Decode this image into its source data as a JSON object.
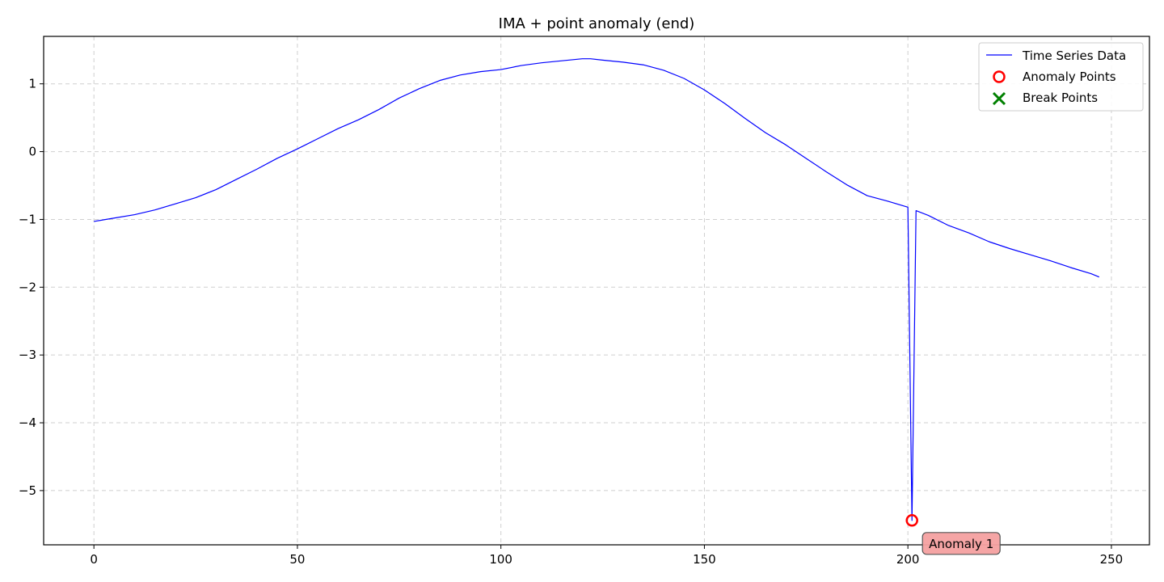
{
  "chart_data": {
    "type": "line",
    "title": "IMA + point anomaly (end)",
    "xlabel": "",
    "ylabel": "",
    "xlim": [
      -12.35,
      259.35
    ],
    "ylim": [
      -5.8,
      1.7
    ],
    "xticks": [
      0,
      50,
      100,
      150,
      200,
      250
    ],
    "xtick_labels": [
      "0",
      "50",
      "100",
      "150",
      "200",
      "250"
    ],
    "yticks": [
      1,
      0,
      -1,
      -2,
      -3,
      -4,
      -5
    ],
    "ytick_labels": [
      "1",
      "0",
      "−1",
      "−2",
      "−3",
      "−4",
      "−5"
    ],
    "grid": true,
    "legend_position": "top-right",
    "series": [
      {
        "name": "Time Series Data",
        "color": "#0000ff",
        "x": [
          0,
          5,
          10,
          15,
          20,
          25,
          30,
          35,
          40,
          45,
          50,
          55,
          60,
          65,
          70,
          75,
          80,
          85,
          90,
          95,
          100,
          105,
          110,
          115,
          120,
          122,
          125,
          130,
          135,
          140,
          145,
          150,
          155,
          160,
          165,
          170,
          175,
          180,
          185,
          190,
          195,
          200,
          201,
          202,
          205,
          210,
          215,
          220,
          225,
          230,
          235,
          240,
          245,
          247
        ],
        "y": [
          -1.03,
          -0.98,
          -0.93,
          -0.86,
          -0.77,
          -0.68,
          -0.56,
          -0.41,
          -0.26,
          -0.1,
          0.04,
          0.19,
          0.34,
          0.47,
          0.62,
          0.79,
          0.93,
          1.05,
          1.13,
          1.18,
          1.21,
          1.27,
          1.31,
          1.34,
          1.37,
          1.37,
          1.35,
          1.32,
          1.28,
          1.2,
          1.08,
          0.91,
          0.71,
          0.49,
          0.28,
          0.1,
          -0.1,
          -0.3,
          -0.49,
          -0.65,
          -0.73,
          -0.82,
          -5.44,
          -0.87,
          -0.94,
          -1.09,
          -1.2,
          -1.33,
          -1.43,
          -1.52,
          -1.61,
          -1.71,
          -1.8,
          -1.85
        ]
      }
    ],
    "anomaly_points": {
      "name": "Anomaly Points",
      "color": "#ff0000",
      "points": [
        {
          "x": 201,
          "y": -5.44
        }
      ]
    },
    "break_points": {
      "name": "Break Points",
      "color": "#008000",
      "points": []
    },
    "annotations": [
      {
        "text": "Anomaly 1",
        "x": 201,
        "y": -5.44,
        "bg_color": "#f4a0a0"
      }
    ]
  }
}
